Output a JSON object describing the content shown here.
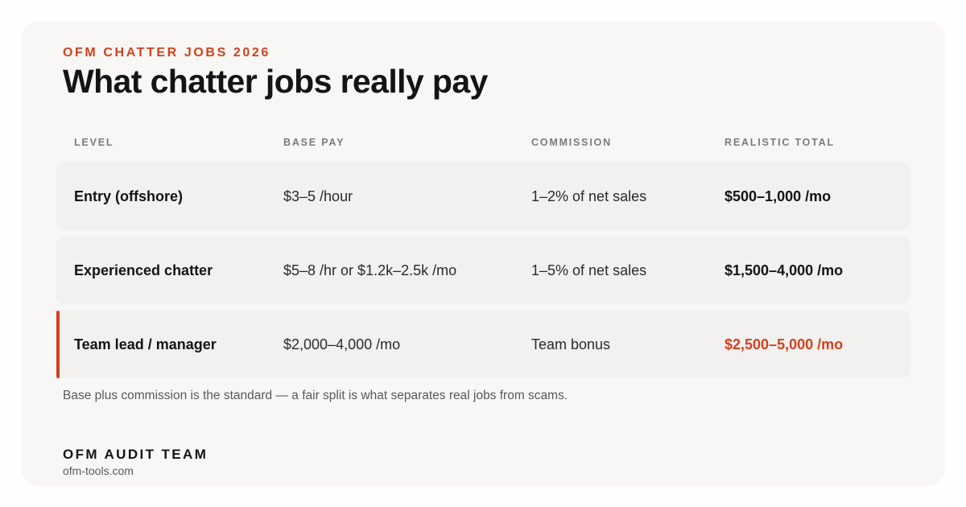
{
  "header": {
    "eyebrow": "OFM CHATTER JOBS 2026",
    "title": "What chatter jobs really pay"
  },
  "table": {
    "columns": [
      "LEVEL",
      "BASE PAY",
      "COMMISSION",
      "REALISTIC TOTAL"
    ],
    "rows": [
      {
        "level": "Entry (offshore)",
        "base_pay": "$3–5 /hour",
        "commission": "1–2% of net sales",
        "total": "$500–1,000 /mo",
        "highlighted": false
      },
      {
        "level": "Experienced chatter",
        "base_pay": "$5–8 /hr or $1.2k–2.5k /mo",
        "commission": "1–5% of net sales",
        "total": "$1,500–4,000 /mo",
        "highlighted": false
      },
      {
        "level": "Team lead / manager",
        "base_pay": "$2,000–4,000 /mo",
        "commission": "Team bonus",
        "total": "$2,500–5,000 /mo",
        "highlighted": true
      }
    ]
  },
  "footnote": "Base plus commission is the standard — a fair split is what separates real jobs from scams.",
  "footer": {
    "brand": "OFM AUDIT TEAM",
    "domain": "ofm-tools.com"
  },
  "colors": {
    "accent": "#d2411f",
    "card_background": "#f8f7f5",
    "row_background": "#f2f1ef",
    "text_primary": "#141414"
  }
}
